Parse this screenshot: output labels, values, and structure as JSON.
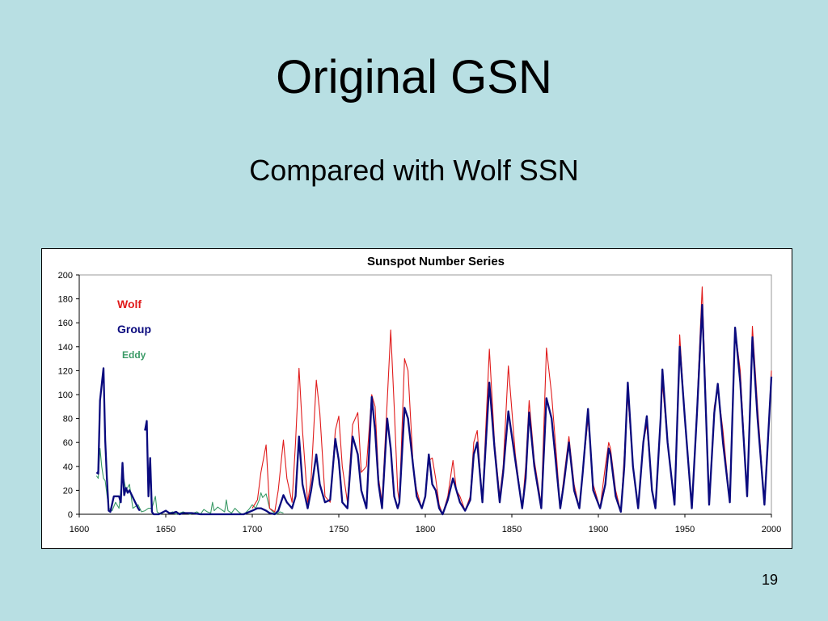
{
  "slide": {
    "title": "Original GSN",
    "subtitle": "Compared with Wolf SSN",
    "page_number": "19"
  },
  "chart_data": {
    "type": "line",
    "title": "Sunspot Number Series",
    "xlabel": "",
    "ylabel": "",
    "xlim": [
      1600,
      2000
    ],
    "ylim": [
      0,
      200
    ],
    "x_ticks": [
      1600,
      1650,
      1700,
      1750,
      1800,
      1850,
      1900,
      1950,
      2000
    ],
    "y_ticks": [
      0,
      20,
      40,
      60,
      80,
      100,
      120,
      140,
      160,
      180,
      200
    ],
    "grid": false,
    "legend_position": "top-left",
    "series": [
      {
        "name": "Wolf",
        "color": "#e01b1b",
        "x": [
          1700,
          1703,
          1705,
          1708,
          1710,
          1713,
          1715,
          1718,
          1720,
          1723,
          1725,
          1727,
          1729,
          1732,
          1734,
          1737,
          1739,
          1742,
          1745,
          1748,
          1750,
          1752,
          1755,
          1758,
          1761,
          1763,
          1766,
          1769,
          1771,
          1773,
          1775,
          1778,
          1780,
          1782,
          1784,
          1785,
          1788,
          1790,
          1793,
          1795,
          1798,
          1800,
          1802,
          1804,
          1806,
          1808,
          1810,
          1813,
          1816,
          1818,
          1820,
          1823,
          1826,
          1828,
          1830,
          1833,
          1837,
          1840,
          1843,
          1845,
          1848,
          1852,
          1856,
          1858,
          1860,
          1863,
          1867,
          1870,
          1873,
          1876,
          1878,
          1880,
          1883,
          1886,
          1889,
          1891,
          1894,
          1897,
          1901,
          1904,
          1906,
          1907,
          1910,
          1913,
          1915,
          1917,
          1920,
          1923,
          1926,
          1928,
          1931,
          1933,
          1936,
          1937,
          1940,
          1944,
          1947,
          1950,
          1954,
          1957,
          1960,
          1964,
          1967,
          1969,
          1972,
          1976,
          1979,
          1982,
          1986,
          1989,
          1992,
          1996,
          2000
        ],
        "values": [
          5,
          12,
          35,
          58,
          5,
          2,
          20,
          62,
          30,
          10,
          60,
          122,
          70,
          10,
          30,
          112,
          85,
          15,
          10,
          70,
          82,
          40,
          10,
          75,
          85,
          35,
          40,
          100,
          90,
          30,
          10,
          95,
          154,
          90,
          20,
          10,
          130,
          120,
          40,
          20,
          5,
          14,
          45,
          47,
          30,
          8,
          0,
          15,
          45,
          20,
          15,
          3,
          15,
          60,
          70,
          10,
          138,
          60,
          15,
          40,
          124,
          50,
          5,
          40,
          95,
          45,
          8,
          139,
          100,
          45,
          5,
          30,
          65,
          25,
          5,
          35,
          80,
          25,
          5,
          40,
          60,
          55,
          20,
          2,
          50,
          100,
          40,
          5,
          60,
          75,
          20,
          5,
          80,
          110,
          60,
          8,
          150,
          80,
          5,
          90,
          190,
          10,
          90,
          105,
          70,
          10,
          155,
          120,
          15,
          157,
          90,
          8,
          120
        ]
      },
      {
        "name": "Group",
        "color": "#0a0a7e",
        "x": [
          1610,
          1611,
          1612,
          1614,
          1615,
          1616,
          1617,
          1618,
          1620,
          1623,
          1624,
          1625,
          1626,
          1627,
          1628,
          1629,
          1634,
          1635,
          1636,
          1638,
          1639,
          1640,
          1641,
          1642,
          1643,
          1644,
          1646,
          1650,
          1652,
          1654,
          1656,
          1658,
          1660,
          1662,
          1665,
          1670,
          1675,
          1680,
          1685,
          1690,
          1695,
          1700,
          1703,
          1705,
          1708,
          1710,
          1713,
          1715,
          1718,
          1720,
          1723,
          1725,
          1727,
          1729,
          1732,
          1734,
          1737,
          1739,
          1742,
          1745,
          1748,
          1750,
          1752,
          1755,
          1758,
          1761,
          1763,
          1766,
          1769,
          1771,
          1773,
          1775,
          1778,
          1780,
          1782,
          1784,
          1785,
          1788,
          1790,
          1793,
          1795,
          1798,
          1800,
          1802,
          1804,
          1806,
          1808,
          1810,
          1813,
          1816,
          1818,
          1820,
          1823,
          1826,
          1828,
          1830,
          1833,
          1837,
          1840,
          1843,
          1845,
          1848,
          1852,
          1856,
          1858,
          1860,
          1863,
          1867,
          1870,
          1873,
          1876,
          1878,
          1880,
          1883,
          1886,
          1889,
          1891,
          1894,
          1897,
          1901,
          1904,
          1906,
          1907,
          1910,
          1913,
          1915,
          1917,
          1920,
          1923,
          1926,
          1928,
          1931,
          1933,
          1936,
          1937,
          1940,
          1944,
          1947,
          1950,
          1954,
          1957,
          1960,
          1964,
          1967,
          1969,
          1972,
          1976,
          1979,
          1982,
          1986,
          1989,
          1992,
          1996,
          2000
        ],
        "values": [
          35,
          34,
          95,
          122,
          62,
          30,
          3,
          2,
          15,
          15,
          10,
          43,
          16,
          22,
          18,
          20,
          5,
          3,
          null,
          70,
          78,
          15,
          47,
          2,
          0,
          0,
          0,
          3,
          1,
          1,
          2,
          0,
          1,
          1,
          1,
          0,
          0,
          0,
          0,
          0,
          0,
          3,
          5,
          5,
          3,
          1,
          0,
          3,
          16,
          10,
          5,
          15,
          65,
          25,
          5,
          20,
          50,
          25,
          10,
          12,
          63,
          45,
          10,
          5,
          65,
          50,
          20,
          5,
          98,
          70,
          25,
          5,
          80,
          55,
          15,
          5,
          10,
          89,
          80,
          40,
          15,
          5,
          15,
          50,
          25,
          20,
          5,
          0,
          12,
          30,
          20,
          10,
          3,
          12,
          50,
          60,
          10,
          110,
          55,
          10,
          35,
          86,
          45,
          5,
          30,
          85,
          40,
          5,
          97,
          80,
          35,
          5,
          25,
          60,
          20,
          5,
          35,
          88,
          20,
          5,
          25,
          55,
          50,
          15,
          2,
          40,
          110,
          40,
          5,
          60,
          82,
          20,
          5,
          80,
          121,
          60,
          8,
          140,
          80,
          5,
          85,
          175,
          8,
          85,
          109,
          60,
          10,
          156,
          110,
          15,
          148,
          80,
          8,
          115
        ]
      },
      {
        "name": "Eddy",
        "color": "#3a9a66",
        "x": [
          1610,
          1611,
          1612,
          1613,
          1614,
          1615,
          1617,
          1619,
          1621,
          1623,
          1625,
          1627,
          1629,
          1631,
          1634,
          1636,
          1638,
          1640,
          1642,
          1643,
          1644,
          1645,
          1647,
          1650,
          1652,
          1654,
          1656,
          1658,
          1660,
          1662,
          1664,
          1666,
          1668,
          1670,
          1672,
          1674,
          1676,
          1677,
          1678,
          1680,
          1682,
          1684,
          1685,
          1686,
          1688,
          1690,
          1692,
          1694,
          1696,
          1698,
          1700,
          1702,
          1704,
          1705,
          1706,
          1708,
          1710,
          1712,
          1714,
          1716,
          1718
        ],
        "values": [
          32,
          30,
          55,
          40,
          30,
          28,
          5,
          3,
          10,
          5,
          35,
          20,
          25,
          5,
          8,
          2,
          3,
          5,
          5,
          10,
          15,
          2,
          0,
          3,
          1,
          2,
          0,
          1,
          2,
          1,
          0,
          1,
          2,
          0,
          4,
          2,
          1,
          10,
          3,
          6,
          4,
          2,
          12,
          3,
          1,
          5,
          2,
          0,
          1,
          4,
          8,
          5,
          12,
          18,
          14,
          17,
          5,
          2,
          0,
          2,
          1
        ]
      }
    ]
  }
}
